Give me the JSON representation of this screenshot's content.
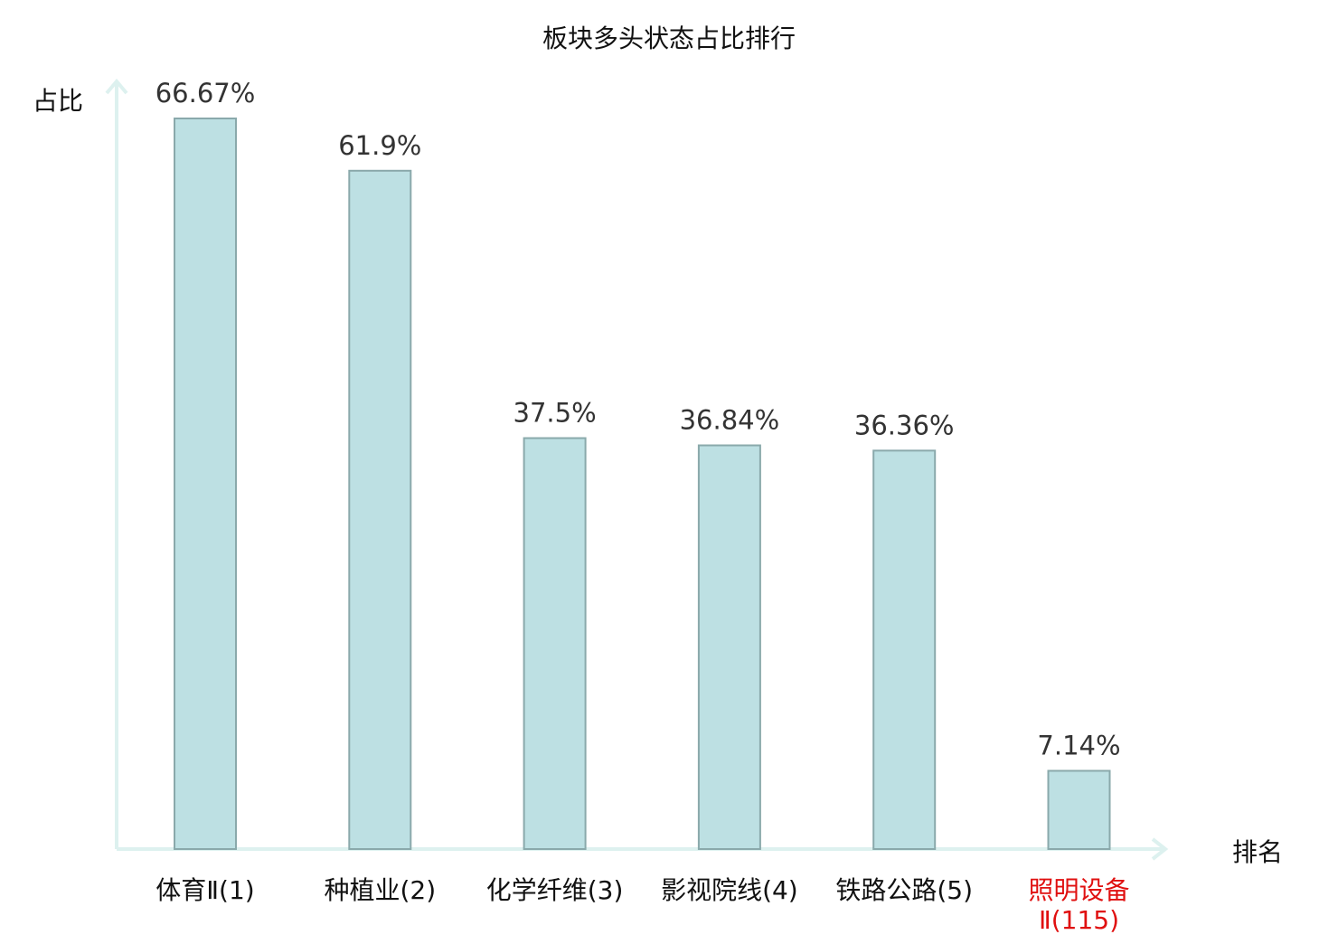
{
  "chart_data": {
    "type": "bar",
    "title": "板块多头状态占比排行",
    "ylabel": "占比",
    "xlabel": "排名",
    "categories": [
      {
        "label": [
          "体育Ⅱ(1)"
        ],
        "highlight": false
      },
      {
        "label": [
          "种植业(2)"
        ],
        "highlight": false
      },
      {
        "label": [
          "化学纤维(3)"
        ],
        "highlight": false
      },
      {
        "label": [
          "影视院线(4)"
        ],
        "highlight": false
      },
      {
        "label": [
          "铁路公路(5)"
        ],
        "highlight": false
      },
      {
        "label": [
          "照明设备",
          "Ⅱ(115)"
        ],
        "highlight": true
      }
    ],
    "values": [
      66.67,
      61.9,
      37.5,
      36.84,
      36.36,
      7.14
    ],
    "value_labels": [
      "66.67%",
      "61.9%",
      "37.5%",
      "36.84%",
      "36.36%",
      "7.14%"
    ],
    "ylim": [
      0,
      66.67
    ],
    "grid": false,
    "colors": {
      "bar_fill": "#bde0e3",
      "bar_stroke": "#8aa9ab",
      "axis": "#ddf1ef",
      "label_normal": "#111111",
      "label_highlight": "#e01010",
      "value_text": "#333333"
    }
  }
}
